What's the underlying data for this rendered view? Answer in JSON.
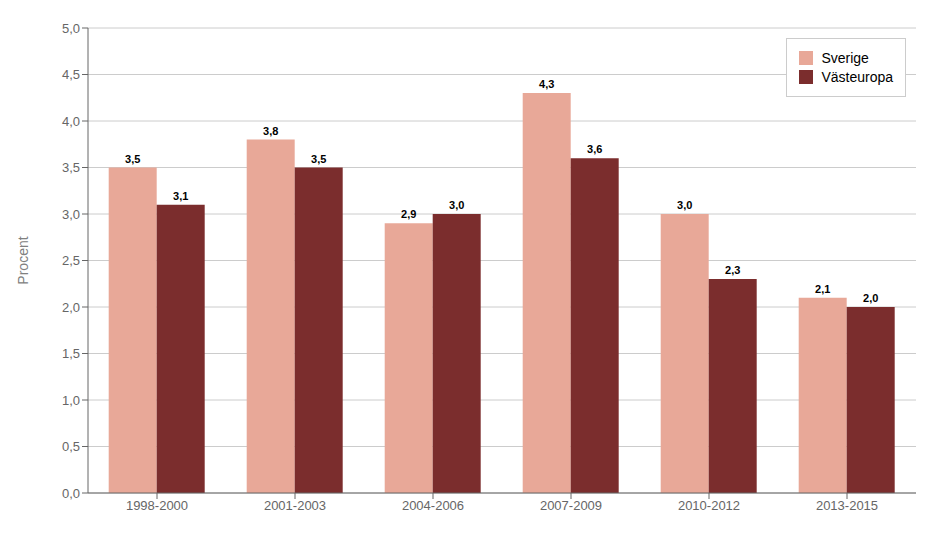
{
  "chart_data": {
    "type": "bar",
    "ylabel": "Procent",
    "categories": [
      "1998-2000",
      "2001-2003",
      "2004-2006",
      "2007-2009",
      "2010-2012",
      "2013-2015"
    ],
    "series": [
      {
        "name": "Sverige",
        "color": "#e8a898",
        "values": [
          3.5,
          3.8,
          2.9,
          4.3,
          3.0,
          2.1
        ],
        "value_labels": [
          "3,5",
          "3,8",
          "2,9",
          "4,3",
          "3,0",
          "2,1"
        ]
      },
      {
        "name": "Västeuropa",
        "color": "#7b2d2d",
        "values": [
          3.1,
          3.5,
          3.0,
          3.6,
          2.3,
          2.0
        ],
        "value_labels": [
          "3,1",
          "3,5",
          "3,0",
          "3,6",
          "2,3",
          "2,0"
        ]
      }
    ],
    "ylim": [
      0,
      5.0
    ],
    "yticks": [
      {
        "value": 0.0,
        "label": "0,0"
      },
      {
        "value": 0.5,
        "label": "0,5"
      },
      {
        "value": 1.0,
        "label": "1,0"
      },
      {
        "value": 1.5,
        "label": "1,5"
      },
      {
        "value": 2.0,
        "label": "2,0"
      },
      {
        "value": 2.5,
        "label": "2,5"
      },
      {
        "value": 3.0,
        "label": "3,0"
      },
      {
        "value": 3.5,
        "label": "3,5"
      },
      {
        "value": 4.0,
        "label": "4,0"
      },
      {
        "value": 4.5,
        "label": "4,5"
      },
      {
        "value": 5.0,
        "label": "5,0"
      }
    ],
    "grid": true,
    "legend": "upper right",
    "data_labels": true
  }
}
